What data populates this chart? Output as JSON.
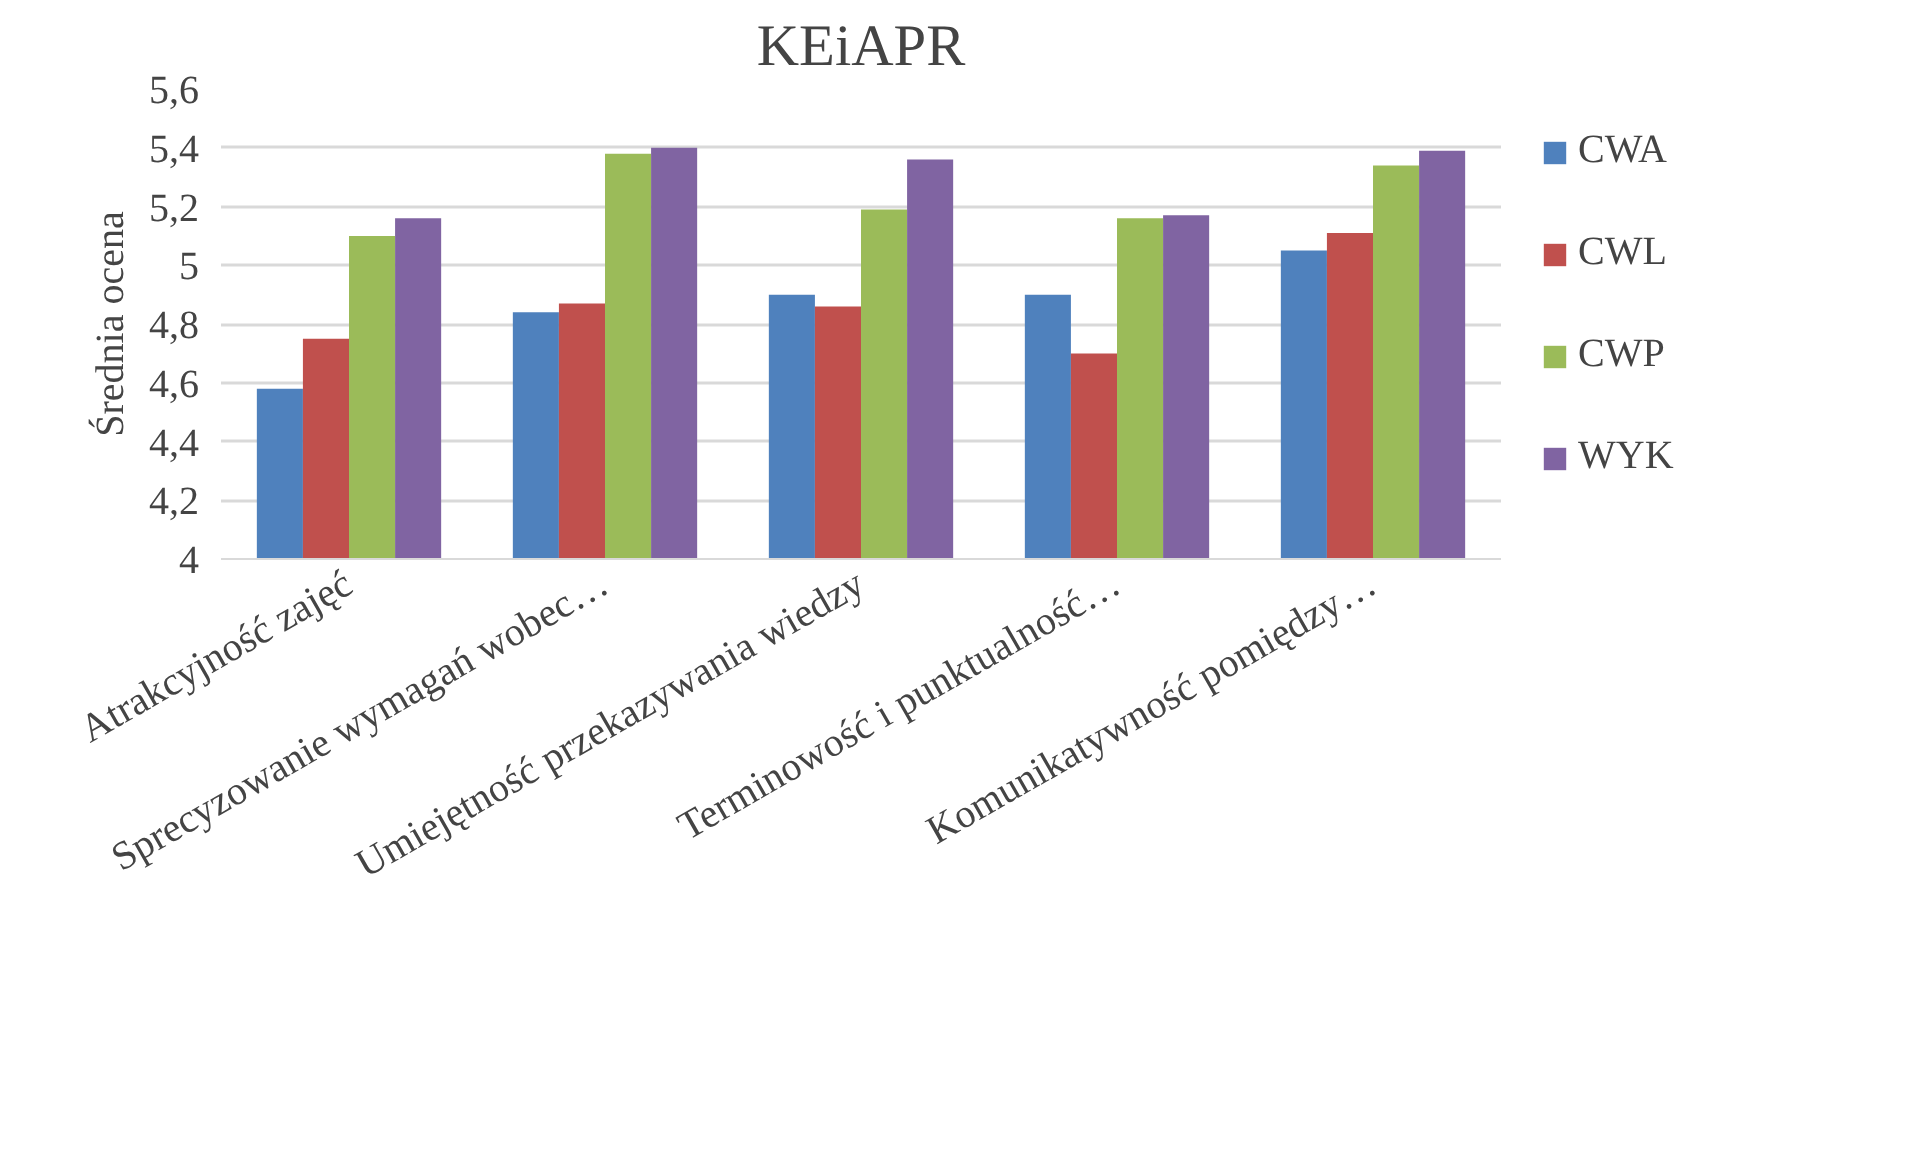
{
  "chart_data": {
    "type": "bar",
    "title": "KEiAPR",
    "ylabel": "Średnia ocena",
    "categories": [
      "Atrakcyjność zajęć",
      "Sprecyzowanie wymagań wobec…",
      "Umiejętność przekazywania wiedzy",
      "Terminowość i punktualność…",
      "Komunikatywność pomiędzy…"
    ],
    "series": [
      {
        "name": "CWA",
        "color": "#4f81bd",
        "values": [
          4.58,
          4.84,
          4.9,
          4.9,
          5.05
        ]
      },
      {
        "name": "CWL",
        "color": "#c0504d",
        "values": [
          4.75,
          4.87,
          4.86,
          4.7,
          5.11
        ]
      },
      {
        "name": "CWP",
        "color": "#9bbb59",
        "values": [
          5.1,
          5.38,
          5.19,
          5.16,
          5.34
        ]
      },
      {
        "name": "WYK",
        "color": "#8064a2",
        "values": [
          5.16,
          5.4,
          5.36,
          5.17,
          5.39
        ]
      }
    ],
    "ylim": [
      4,
      5.6
    ],
    "yticks": [
      4,
      {
        "value": 4.2,
        "label": "4,2"
      },
      {
        "value": 4.4,
        "label": "4,4"
      },
      {
        "value": 4.6,
        "label": "4,6"
      },
      {
        "value": 4.8,
        "label": "4,8"
      },
      5,
      {
        "value": 5.2,
        "label": "5,2"
      },
      {
        "value": 5.4,
        "label": "5,4"
      },
      {
        "value": 5.6,
        "label": "5,6"
      }
    ],
    "grid": "y",
    "legend": "right"
  }
}
